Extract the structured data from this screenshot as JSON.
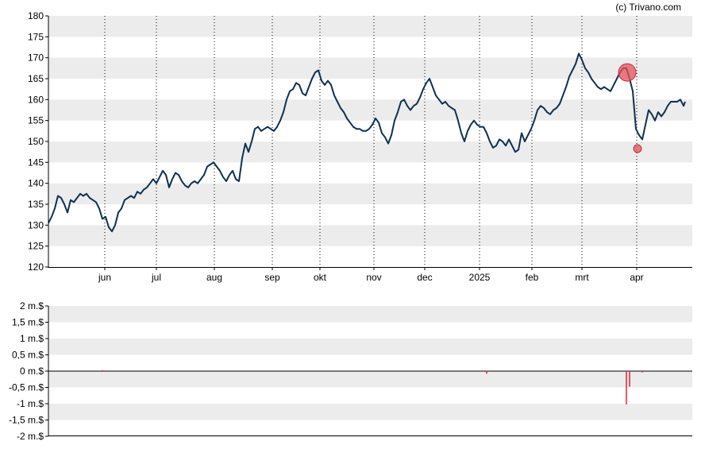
{
  "credit": "(c) Trivano.com",
  "colors": {
    "price_line": "#0d3152",
    "band": "#ececec",
    "marker": "#e8505b",
    "volume_bar": "#e8202c",
    "axis": "#000000"
  },
  "chart_data": [
    {
      "type": "line",
      "title": "",
      "xlabel": "",
      "ylabel": "",
      "ylim": [
        120,
        180
      ],
      "y_ticks": [
        "180",
        "175",
        "170",
        "165",
        "160",
        "155",
        "150",
        "145",
        "140",
        "135",
        "130",
        "125",
        "120"
      ],
      "x_tick_labels": [
        "jun",
        "jul",
        "aug",
        "sep",
        "okt",
        "nov",
        "dec",
        "2025",
        "feb",
        "mrt",
        "apr"
      ],
      "grid": "horizontal bands + dotted vertical month lines",
      "series": [
        {
          "values": [
            [
              0,
              130.5
            ],
            [
              2,
              132
            ],
            [
              4,
              134
            ],
            [
              6,
              137
            ],
            [
              8,
              136.5
            ],
            [
              10,
              135
            ],
            [
              12,
              133
            ],
            [
              14,
              136
            ],
            [
              16,
              135.5
            ],
            [
              18,
              136.5
            ],
            [
              20,
              137.5
            ],
            [
              22,
              137
            ],
            [
              24,
              137.5
            ],
            [
              26,
              136.5
            ],
            [
              28,
              136
            ],
            [
              30,
              135.5
            ],
            [
              32,
              134
            ],
            [
              34,
              131.5
            ],
            [
              36,
              132
            ],
            [
              38,
              129.5
            ],
            [
              40,
              128.5
            ],
            [
              42,
              130
            ],
            [
              44,
              133
            ],
            [
              46,
              134
            ],
            [
              48,
              136
            ],
            [
              50,
              136.5
            ],
            [
              52,
              137
            ],
            [
              54,
              136.5
            ],
            [
              56,
              138
            ],
            [
              58,
              137.5
            ],
            [
              60,
              138.5
            ],
            [
              62,
              139
            ],
            [
              64,
              140
            ],
            [
              66,
              141
            ],
            [
              68,
              140
            ],
            [
              70,
              141.5
            ],
            [
              72,
              143
            ],
            [
              74,
              142
            ],
            [
              76,
              139
            ],
            [
              78,
              141
            ],
            [
              80,
              142.5
            ],
            [
              82,
              142
            ],
            [
              84,
              140.5
            ],
            [
              86,
              139.5
            ],
            [
              88,
              139
            ],
            [
              90,
              140
            ],
            [
              92,
              140.5
            ],
            [
              94,
              140
            ],
            [
              96,
              141
            ],
            [
              98,
              142
            ],
            [
              100,
              144
            ],
            [
              102,
              144.5
            ],
            [
              104,
              145
            ],
            [
              106,
              144
            ],
            [
              108,
              143
            ],
            [
              110,
              141.5
            ],
            [
              112,
              140.5
            ],
            [
              114,
              142
            ],
            [
              116,
              143
            ],
            [
              118,
              141
            ],
            [
              120,
              140.5
            ],
            [
              122,
              146
            ],
            [
              124,
              149.5
            ],
            [
              126,
              147.5
            ],
            [
              128,
              150
            ],
            [
              130,
              153
            ],
            [
              132,
              153.5
            ],
            [
              134,
              152.5
            ],
            [
              136,
              153
            ],
            [
              138,
              153.5
            ],
            [
              140,
              153
            ],
            [
              142,
              152.5
            ],
            [
              144,
              153.5
            ],
            [
              146,
              155
            ],
            [
              148,
              157
            ],
            [
              150,
              160
            ],
            [
              152,
              162
            ],
            [
              154,
              162.5
            ],
            [
              156,
              164
            ],
            [
              158,
              163.5
            ],
            [
              160,
              161.5
            ],
            [
              162,
              161
            ],
            [
              164,
              163
            ],
            [
              166,
              165
            ],
            [
              168,
              166.5
            ],
            [
              170,
              167
            ],
            [
              172,
              164.5
            ],
            [
              174,
              163.5
            ],
            [
              176,
              164.5
            ],
            [
              178,
              163.5
            ],
            [
              180,
              161
            ],
            [
              182,
              159.5
            ],
            [
              184,
              158
            ],
            [
              186,
              157
            ],
            [
              188,
              155.5
            ],
            [
              190,
              154.5
            ],
            [
              192,
              153.5
            ],
            [
              194,
              153
            ],
            [
              196,
              153
            ],
            [
              198,
              152.5
            ],
            [
              200,
              152.5
            ],
            [
              202,
              153
            ],
            [
              204,
              154
            ],
            [
              206,
              155.5
            ],
            [
              208,
              154.5
            ],
            [
              210,
              152
            ],
            [
              212,
              151
            ],
            [
              214,
              149.5
            ],
            [
              216,
              151.5
            ],
            [
              218,
              155
            ],
            [
              220,
              157
            ],
            [
              222,
              159.5
            ],
            [
              224,
              160
            ],
            [
              226,
              158.5
            ],
            [
              228,
              157.5
            ],
            [
              230,
              158.5
            ],
            [
              232,
              159
            ],
            [
              234,
              160.5
            ],
            [
              236,
              162.5
            ],
            [
              238,
              164
            ],
            [
              240,
              165
            ],
            [
              242,
              163
            ],
            [
              244,
              161
            ],
            [
              246,
              160
            ],
            [
              248,
              159
            ],
            [
              250,
              159.5
            ],
            [
              252,
              158.5
            ],
            [
              254,
              158
            ],
            [
              256,
              157.5
            ],
            [
              258,
              155
            ],
            [
              260,
              152
            ],
            [
              262,
              150
            ],
            [
              264,
              152.5
            ],
            [
              266,
              154
            ],
            [
              268,
              155
            ],
            [
              270,
              154
            ],
            [
              272,
              153.5
            ],
            [
              274,
              153.5
            ],
            [
              276,
              152
            ],
            [
              278,
              150
            ],
            [
              280,
              148.5
            ],
            [
              282,
              149
            ],
            [
              284,
              150.5
            ],
            [
              286,
              150
            ],
            [
              288,
              149
            ],
            [
              290,
              150.5
            ],
            [
              292,
              149
            ],
            [
              294,
              147.5
            ],
            [
              296,
              148
            ],
            [
              298,
              152
            ],
            [
              300,
              150
            ],
            [
              302,
              151.5
            ],
            [
              304,
              153
            ],
            [
              306,
              155
            ],
            [
              308,
              157.5
            ],
            [
              310,
              158.5
            ],
            [
              312,
              158
            ],
            [
              314,
              157
            ],
            [
              316,
              156.5
            ],
            [
              318,
              157.5
            ],
            [
              320,
              158
            ],
            [
              322,
              159
            ],
            [
              324,
              161
            ],
            [
              326,
              163
            ],
            [
              328,
              165.5
            ],
            [
              330,
              167
            ],
            [
              332,
              168.5
            ],
            [
              334,
              171
            ],
            [
              336,
              169.5
            ],
            [
              338,
              167.5
            ],
            [
              340,
              166.5
            ],
            [
              342,
              165
            ],
            [
              344,
              164
            ],
            [
              346,
              163
            ],
            [
              348,
              162.5
            ],
            [
              350,
              163
            ],
            [
              352,
              162.5
            ],
            [
              354,
              162
            ],
            [
              356,
              163.5
            ],
            [
              358,
              165
            ],
            [
              360,
              166.5
            ],
            [
              362,
              167.5
            ],
            [
              364,
              167.5
            ],
            [
              366,
              165
            ],
            [
              368,
              162
            ],
            [
              370,
              153
            ],
            [
              372,
              151.5
            ],
            [
              374,
              150.5
            ],
            [
              376,
              154
            ],
            [
              378,
              157.5
            ],
            [
              380,
              156.5
            ],
            [
              382,
              155
            ],
            [
              384,
              157
            ],
            [
              386,
              156
            ],
            [
              388,
              157
            ],
            [
              390,
              158.5
            ],
            [
              392,
              159.5
            ],
            [
              394,
              159.5
            ],
            [
              396,
              159.5
            ],
            [
              398,
              160
            ],
            [
              400,
              158.5
            ],
            [
              401,
              159.5
            ]
          ]
        }
      ],
      "markers": [
        {
          "x": 364.5,
          "y": 166.5,
          "size": "large"
        },
        {
          "x": 371,
          "y": 148.3,
          "size": "small"
        }
      ]
    },
    {
      "type": "bar",
      "title": "",
      "xlabel": "",
      "ylabel": "",
      "ylim": [
        -2000000,
        2000000
      ],
      "y_ticks": [
        "2 m.$",
        "1,5 m.$",
        "1 m.$",
        "0,5 m.$",
        "0 m.$",
        "-0,5 m.$",
        "-1 m.$",
        "-1,5 m.$",
        "-2 m.$"
      ],
      "values": [
        [
          34,
          30000
        ],
        [
          276,
          -80000
        ],
        [
          364,
          -1020000
        ],
        [
          366,
          -480000
        ],
        [
          374,
          -40000
        ]
      ]
    }
  ]
}
